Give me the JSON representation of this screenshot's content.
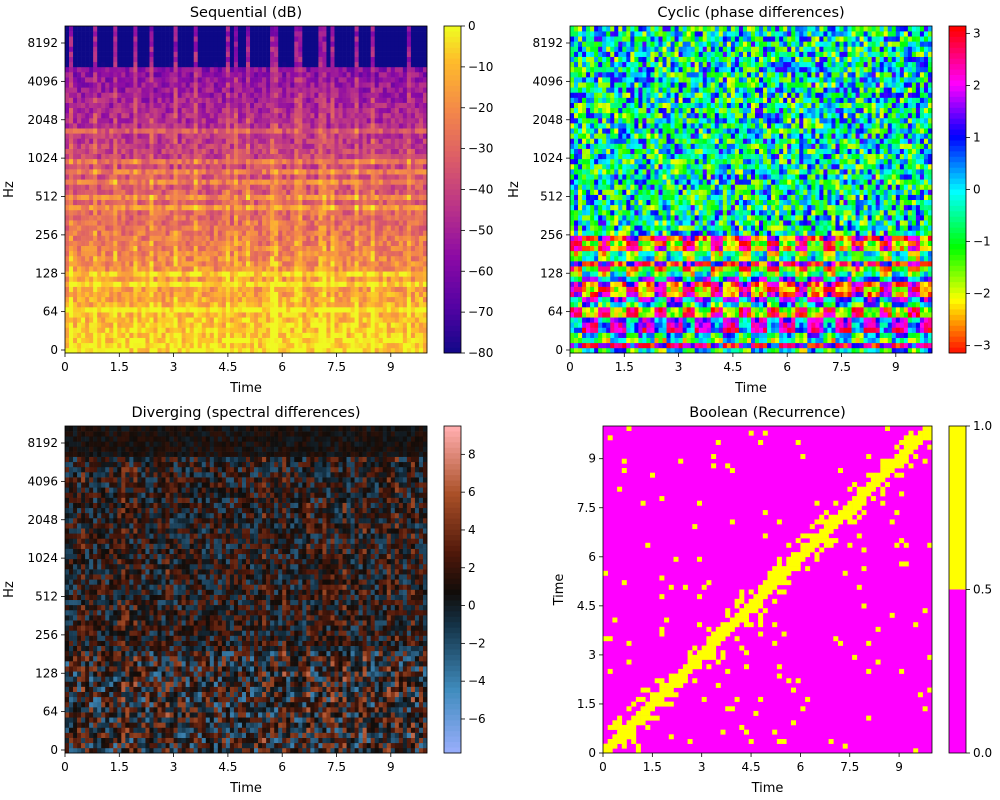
{
  "figure": {
    "background": "#ffffff"
  },
  "chart_data": [
    {
      "type": "heatmap",
      "title": "Sequential (dB)",
      "xlabel": "Time",
      "ylabel": "Hz",
      "x_ticks": [
        "0",
        "1.5",
        "3",
        "4.5",
        "6",
        "7.5",
        "9"
      ],
      "x_tick_values": [
        0,
        1.5,
        3,
        4.5,
        6,
        7.5,
        9
      ],
      "xlim": [
        0,
        10
      ],
      "y_ticks": [
        "0",
        "64",
        "128",
        "256",
        "512",
        "1024",
        "2048",
        "4096",
        "8192"
      ],
      "y_scale": "log",
      "colormap": "magma/plasma-like",
      "colorbar": {
        "ticks": [
          "0",
          "−10",
          "−20",
          "−30",
          "−40",
          "−50",
          "−60",
          "−70",
          "−80"
        ],
        "tick_values": [
          0,
          -10,
          -20,
          -30,
          -40,
          -50,
          -60,
          -70,
          -80
        ],
        "range": [
          -80,
          0
        ]
      }
    },
    {
      "type": "heatmap",
      "title": "Cyclic (phase differences)",
      "xlabel": "Time",
      "ylabel": "Hz",
      "x_ticks": [
        "0",
        "1.5",
        "3",
        "4.5",
        "6",
        "7.5",
        "9"
      ],
      "x_tick_values": [
        0,
        1.5,
        3,
        4.5,
        6,
        7.5,
        9
      ],
      "xlim": [
        0,
        10
      ],
      "y_ticks": [
        "0",
        "64",
        "128",
        "256",
        "512",
        "1024",
        "2048",
        "4096",
        "8192"
      ],
      "y_scale": "log",
      "colormap": "hsv",
      "colorbar": {
        "ticks": [
          "3",
          "2",
          "1",
          "0",
          "−1",
          "−2",
          "−3"
        ],
        "tick_values": [
          3,
          2,
          1,
          0,
          -1,
          -2,
          -3
        ],
        "range": [
          -3.14159,
          3.14159
        ]
      }
    },
    {
      "type": "heatmap",
      "title": "Diverging (spectral differences)",
      "xlabel": "Time",
      "ylabel": "Hz",
      "x_ticks": [
        "0",
        "1.5",
        "3",
        "4.5",
        "6",
        "7.5",
        "9"
      ],
      "x_tick_values": [
        0,
        1.5,
        3,
        4.5,
        6,
        7.5,
        9
      ],
      "xlim": [
        0,
        10
      ],
      "y_ticks": [
        "0",
        "64",
        "128",
        "256",
        "512",
        "1024",
        "2048",
        "4096",
        "8192"
      ],
      "y_scale": "log",
      "colormap": "berlin-like diverging",
      "colorbar": {
        "ticks": [
          "8",
          "6",
          "4",
          "2",
          "0",
          "−2",
          "−4",
          "−6"
        ],
        "tick_values": [
          8,
          6,
          4,
          2,
          0,
          -2,
          -4,
          -6
        ],
        "range": [
          -7.8,
          9.5
        ]
      }
    },
    {
      "type": "heatmap",
      "title": "Boolean (Recurrence)",
      "xlabel": "Time",
      "ylabel": "Time",
      "x_ticks": [
        "0",
        "1.5",
        "3",
        "4.5",
        "6",
        "7.5",
        "9"
      ],
      "x_tick_values": [
        0,
        1.5,
        3,
        4.5,
        6,
        7.5,
        9
      ],
      "xlim": [
        0,
        10
      ],
      "y_ticks": [
        "0",
        "1.5",
        "3",
        "4.5",
        "6",
        "7.5",
        "9"
      ],
      "y_tick_values": [
        0,
        1.5,
        3,
        4.5,
        6,
        7.5,
        9
      ],
      "ylim": [
        0,
        10
      ],
      "colors": {
        "false": "#ff00ff",
        "true": "#ffff00"
      },
      "colorbar": {
        "ticks": [
          "1.0",
          "0.5",
          "0.0"
        ],
        "tick_values": [
          1,
          0.5,
          0
        ],
        "range": [
          0,
          1
        ]
      }
    }
  ]
}
